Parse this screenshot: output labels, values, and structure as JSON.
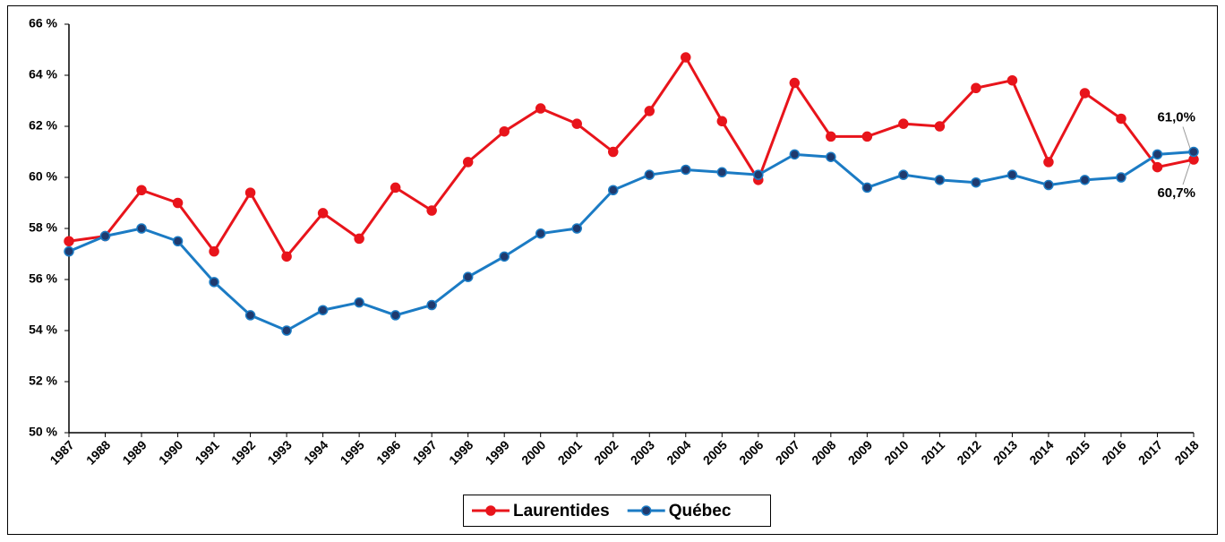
{
  "chart_data": {
    "type": "line",
    "categories": [
      "1987",
      "1988",
      "1989",
      "1990",
      "1991",
      "1992",
      "1993",
      "1994",
      "1995",
      "1996",
      "1997",
      "1998",
      "1999",
      "2000",
      "2001",
      "2002",
      "2003",
      "2004",
      "2005",
      "2006",
      "2007",
      "2008",
      "2009",
      "2010",
      "2011",
      "2012",
      "2013",
      "2014",
      "2015",
      "2016",
      "2017",
      "2018"
    ],
    "series": [
      {
        "name": "Laurentides",
        "color": "#e8141b",
        "marker_color": "#e8141b",
        "values": [
          57.5,
          57.7,
          59.5,
          59.0,
          57.1,
          59.4,
          56.9,
          58.6,
          57.6,
          59.6,
          58.7,
          60.6,
          61.8,
          62.7,
          62.1,
          61.0,
          62.6,
          64.7,
          62.2,
          59.9,
          63.7,
          61.6,
          61.6,
          62.1,
          62.0,
          63.5,
          63.8,
          60.6,
          63.3,
          62.3,
          60.4,
          60.7
        ],
        "value_labels": [
          null,
          null,
          null,
          null,
          null,
          null,
          null,
          null,
          null,
          null,
          null,
          null,
          null,
          null,
          null,
          null,
          null,
          null,
          null,
          null,
          null,
          null,
          null,
          null,
          null,
          null,
          null,
          null,
          null,
          null,
          null,
          "60,7%"
        ]
      },
      {
        "name": "Québec",
        "color": "#1b7bc4",
        "marker_color": "#1f3a6e",
        "values": [
          57.1,
          57.7,
          58.0,
          57.5,
          55.9,
          54.6,
          54.0,
          54.8,
          55.1,
          54.6,
          55.0,
          56.1,
          56.9,
          57.8,
          58.0,
          59.5,
          60.1,
          60.3,
          60.2,
          60.1,
          60.9,
          60.8,
          59.6,
          60.1,
          59.9,
          59.8,
          60.1,
          59.7,
          59.9,
          60.0,
          60.9,
          61.0
        ],
        "value_labels": [
          null,
          null,
          null,
          null,
          null,
          null,
          null,
          null,
          null,
          null,
          null,
          null,
          null,
          null,
          null,
          null,
          null,
          null,
          null,
          null,
          null,
          null,
          null,
          null,
          null,
          null,
          null,
          null,
          null,
          null,
          null,
          "61,0%"
        ]
      }
    ],
    "ylim": [
      50,
      66
    ],
    "yticks": [
      {
        "value": 50,
        "label": "50 %"
      },
      {
        "value": 52,
        "label": "52 %"
      },
      {
        "value": 54,
        "label": "54 %"
      },
      {
        "value": 56,
        "label": "56 %"
      },
      {
        "value": 58,
        "label": "58 %"
      },
      {
        "value": 60,
        "label": "60 %"
      },
      {
        "value": 62,
        "label": "62 %"
      },
      {
        "value": 64,
        "label": "64 %"
      },
      {
        "value": 66,
        "label": "66 %"
      }
    ],
    "grid": false,
    "legend": "bottom"
  }
}
